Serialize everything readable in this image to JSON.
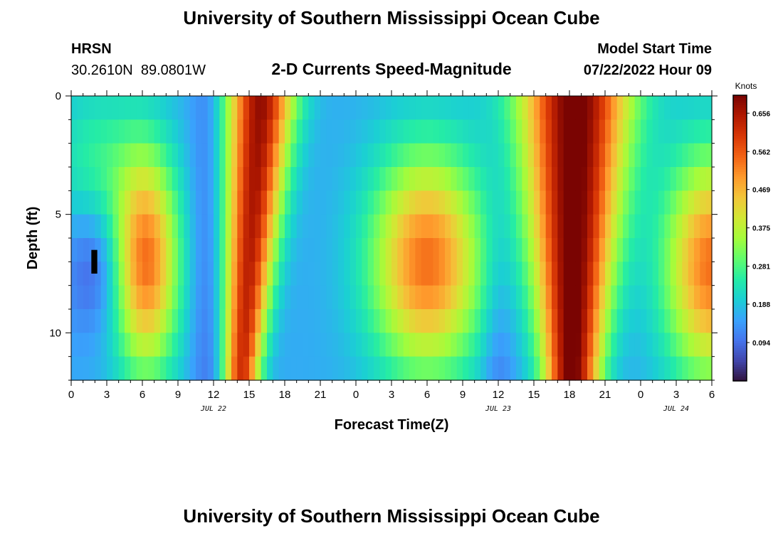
{
  "header": {
    "title": "University of Southern Mississippi Ocean Cube",
    "station": "HRSN",
    "coords": "30.2610N  89.0801W",
    "subtitle": "2-D Currents Speed-Magnitude",
    "model_label": "Model Start Time",
    "model_time": "07/22/2022 Hour 09"
  },
  "footer": {
    "title_repeat": "University of Southern Mississippi Ocean Cube"
  },
  "colorbar": {
    "unit": "Knots",
    "ticks": [
      0.094,
      0.188,
      0.281,
      0.375,
      0.469,
      0.562,
      0.656
    ],
    "tick_labels": [
      "0.094",
      "0.188",
      "0.281",
      "0.375",
      "0.469",
      "0.562",
      "0.656"
    ],
    "range": [
      0.0,
      0.7
    ],
    "colormap": [
      "#30123b",
      "#4145ab",
      "#4675ed",
      "#39a2fc",
      "#1bcfd4",
      "#24eca6",
      "#61fc6c",
      "#a4fc3b",
      "#d1e834",
      "#f3c63a",
      "#fe9b2d",
      "#f36315",
      "#d93806",
      "#b11901",
      "#7a0402"
    ]
  },
  "chart_data": {
    "type": "heatmap",
    "title": "2-D Currents Speed-Magnitude",
    "xlabel": "Forecast Time(Z)",
    "ylabel": "Depth (ft)",
    "x_hours_range": [
      0,
      54
    ],
    "x_ticks_hours": [
      0,
      3,
      6,
      9,
      12,
      15,
      18,
      21,
      24,
      27,
      30,
      33,
      36,
      39,
      42,
      45,
      48,
      51,
      54
    ],
    "x_tick_labels": [
      "0",
      "3",
      "6",
      "9",
      "12",
      "15",
      "18",
      "21",
      "0",
      "3",
      "6",
      "9",
      "12",
      "15",
      "18",
      "21",
      "0",
      "3",
      "6"
    ],
    "date_labels": [
      {
        "hour": 12,
        "label": "JUL 22"
      },
      {
        "hour": 36,
        "label": "JUL 23"
      },
      {
        "hour": 51,
        "label": "JUL 24"
      }
    ],
    "y_range_ft": [
      0,
      12
    ],
    "y_ticks": [
      0,
      5,
      10
    ],
    "y_tick_labels": [
      "0",
      "5",
      "10"
    ],
    "depth_levels_ft": [
      0.5,
      1.5,
      2.5,
      3.5,
      4.5,
      5.5,
      6.5,
      7.5,
      8.5,
      9.5,
      10.5,
      11.5
    ],
    "value_unit": "Knots",
    "value_range": [
      0.0,
      0.7
    ]
  }
}
